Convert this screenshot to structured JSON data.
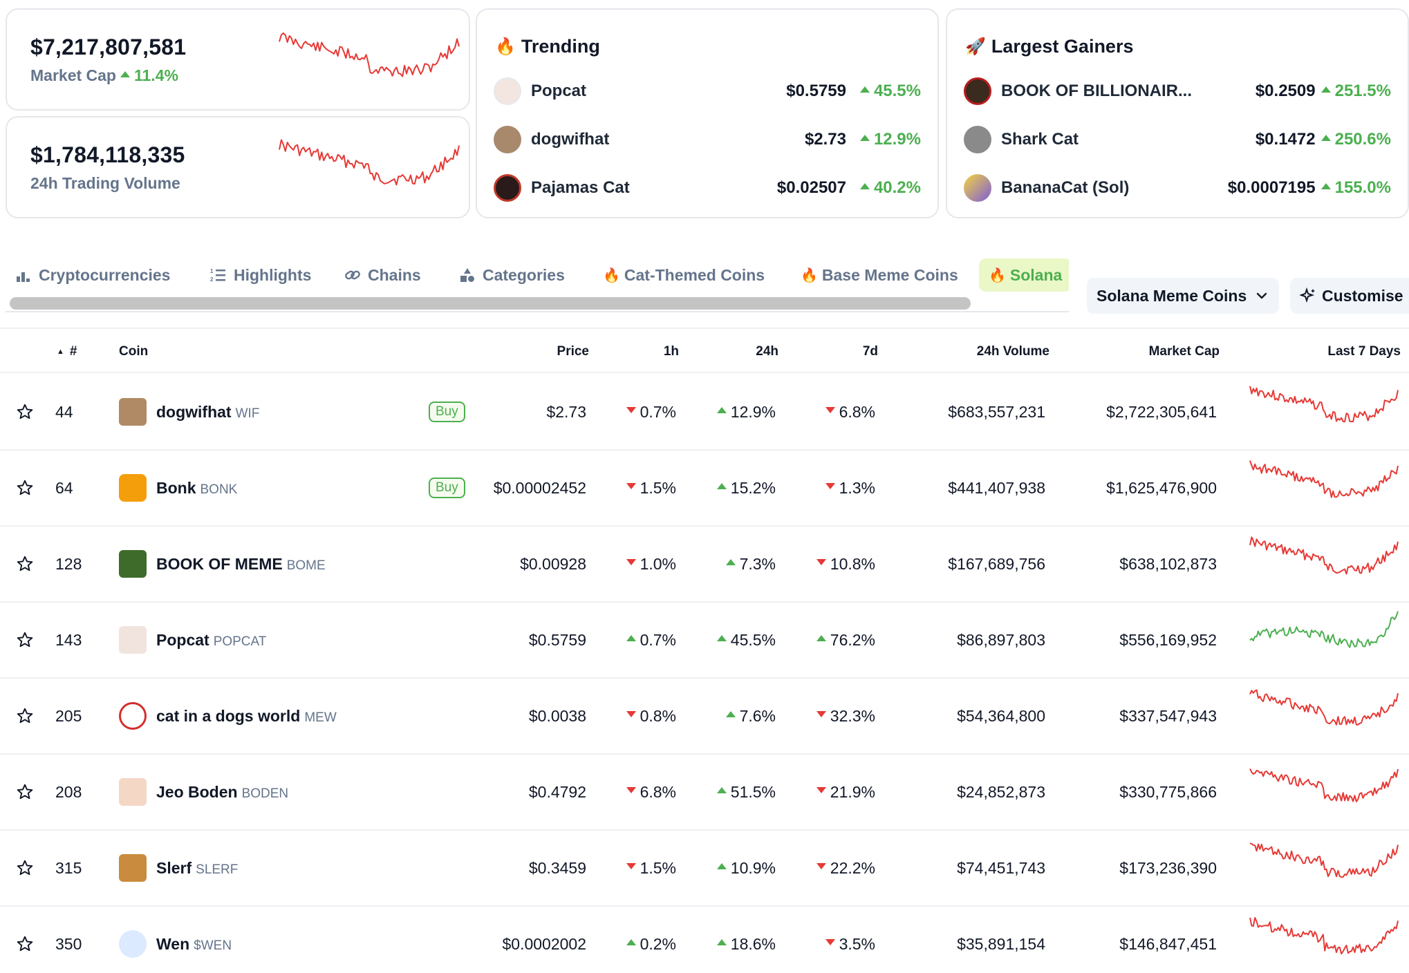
{
  "stats": {
    "market_cap": {
      "value": "$7,217,807,581",
      "label": "Market Cap",
      "change": "11.4%"
    },
    "volume": {
      "value": "$1,784,118,335",
      "label": "24h Trading Volume"
    }
  },
  "trending": {
    "title": "Trending",
    "icon": "fire-icon",
    "items": [
      {
        "name": "Popcat",
        "price": "$0.5759",
        "change": "45.5%"
      },
      {
        "name": "dogwifhat",
        "price": "$2.73",
        "change": "12.9%"
      },
      {
        "name": "Pajamas Cat",
        "price": "$0.02507",
        "change": "40.2%"
      }
    ]
  },
  "gainers": {
    "title": "Largest Gainers",
    "icon": "rocket-icon",
    "items": [
      {
        "name": "BOOK OF BILLIONAIR...",
        "price": "$0.2509",
        "change": "251.5%"
      },
      {
        "name": "Shark Cat",
        "price": "$0.1472",
        "change": "250.6%"
      },
      {
        "name": "BananaCat (Sol)",
        "price": "$0.0007195",
        "change": "155.0%"
      }
    ]
  },
  "tabs": [
    {
      "label": "Cryptocurrencies",
      "icon": "bar-chart-icon"
    },
    {
      "label": "Highlights",
      "icon": "list-icon"
    },
    {
      "label": "Chains",
      "icon": "link-icon"
    },
    {
      "label": "Categories",
      "icon": "shapes-icon"
    },
    {
      "label": "Cat-Themed Coins",
      "icon": "fire-icon"
    },
    {
      "label": "Base Meme Coins",
      "icon": "fire-icon"
    },
    {
      "label": "Solana",
      "icon": "fire-icon"
    }
  ],
  "dropdown": {
    "label": "Solana Meme Coins"
  },
  "customise": {
    "label": "Customise"
  },
  "table": {
    "headers": {
      "rank": "#",
      "coin": "Coin",
      "price": "Price",
      "h1": "1h",
      "h24": "24h",
      "d7": "7d",
      "volume": "24h Volume",
      "mcap": "Market Cap",
      "last7": "Last 7 Days"
    },
    "buy_label": "Buy",
    "rows": [
      {
        "rank": "44",
        "name": "dogwifhat",
        "symbol": "WIF",
        "buy": true,
        "price": "$2.73",
        "h1": "0.7%",
        "h1_dir": "down",
        "h24": "12.9%",
        "h24_dir": "up",
        "d7": "6.8%",
        "d7_dir": "down",
        "volume": "$683,557,231",
        "mcap": "$2,722,305,641",
        "trend": "down"
      },
      {
        "rank": "64",
        "name": "Bonk",
        "symbol": "BONK",
        "buy": true,
        "price": "$0.00002452",
        "h1": "1.5%",
        "h1_dir": "down",
        "h24": "15.2%",
        "h24_dir": "up",
        "d7": "1.3%",
        "d7_dir": "down",
        "volume": "$441,407,938",
        "mcap": "$1,625,476,900",
        "trend": "down"
      },
      {
        "rank": "128",
        "name": "BOOK OF MEME",
        "symbol": "BOME",
        "buy": false,
        "price": "$0.00928",
        "h1": "1.0%",
        "h1_dir": "down",
        "h24": "7.3%",
        "h24_dir": "up",
        "d7": "10.8%",
        "d7_dir": "down",
        "volume": "$167,689,756",
        "mcap": "$638,102,873",
        "trend": "down"
      },
      {
        "rank": "143",
        "name": "Popcat",
        "symbol": "POPCAT",
        "buy": false,
        "price": "$0.5759",
        "h1": "0.7%",
        "h1_dir": "up",
        "h24": "45.5%",
        "h24_dir": "up",
        "d7": "76.2%",
        "d7_dir": "up",
        "volume": "$86,897,803",
        "mcap": "$556,169,952",
        "trend": "up"
      },
      {
        "rank": "205",
        "name": "cat in a dogs world",
        "symbol": "MEW",
        "buy": false,
        "price": "$0.0038",
        "h1": "0.8%",
        "h1_dir": "down",
        "h24": "7.6%",
        "h24_dir": "up",
        "d7": "32.3%",
        "d7_dir": "down",
        "volume": "$54,364,800",
        "mcap": "$337,547,943",
        "trend": "down"
      },
      {
        "rank": "208",
        "name": "Jeo Boden",
        "symbol": "BODEN",
        "buy": false,
        "price": "$0.4792",
        "h1": "6.8%",
        "h1_dir": "down",
        "h24": "51.5%",
        "h24_dir": "up",
        "d7": "21.9%",
        "d7_dir": "down",
        "volume": "$24,852,873",
        "mcap": "$330,775,866",
        "trend": "down"
      },
      {
        "rank": "315",
        "name": "Slerf",
        "symbol": "SLERF",
        "buy": false,
        "price": "$0.3459",
        "h1": "1.5%",
        "h1_dir": "down",
        "h24": "10.9%",
        "h24_dir": "up",
        "d7": "22.2%",
        "d7_dir": "down",
        "volume": "$74,451,743",
        "mcap": "$173,236,390",
        "trend": "down"
      },
      {
        "rank": "350",
        "name": "Wen",
        "symbol": "$WEN",
        "buy": false,
        "price": "$0.0002002",
        "h1": "0.2%",
        "h1_dir": "up",
        "h24": "18.6%",
        "h24_dir": "up",
        "d7": "3.5%",
        "d7_dir": "down",
        "volume": "$35,891,154",
        "mcap": "$146,847,451",
        "trend": "down"
      }
    ]
  },
  "colors": {
    "up": "#4caf50",
    "down": "#e53935",
    "muted": "#64748b",
    "active_tab_bg": "#eaf7c6"
  }
}
